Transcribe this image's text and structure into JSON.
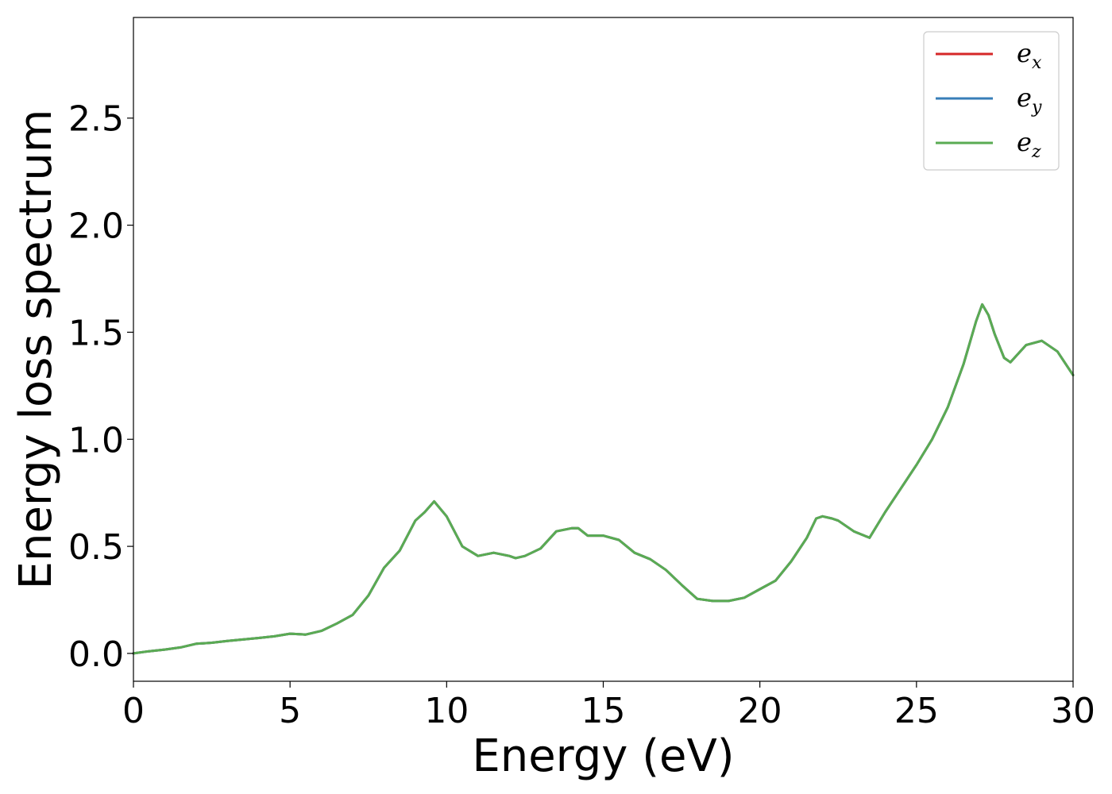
{
  "chart_data": {
    "type": "line",
    "title": "",
    "xlabel": "Energy (eV)",
    "ylabel": "Energy loss spectrum",
    "xlim": [
      0,
      30
    ],
    "ylim": [
      -0.13,
      2.97
    ],
    "xticks": [
      0,
      5,
      10,
      15,
      20,
      25,
      30
    ],
    "xtick_labels": [
      "0",
      "5",
      "10",
      "15",
      "20",
      "25",
      "30"
    ],
    "yticks": [
      0.0,
      0.5,
      1.0,
      1.5,
      2.0,
      2.5
    ],
    "ytick_labels": [
      "0.0",
      "0.5",
      "1.0",
      "1.5",
      "2.0",
      "2.5"
    ],
    "grid": false,
    "legend_position": "top-right",
    "x": [
      0,
      0.5,
      1,
      1.5,
      2,
      2.5,
      3,
      3.5,
      4,
      4.5,
      5,
      5.5,
      6,
      6.5,
      7,
      7.5,
      8,
      8.5,
      9,
      9.3,
      9.6,
      10,
      10.5,
      11,
      11.5,
      12,
      12.2,
      12.5,
      13,
      13.5,
      14,
      14.2,
      14.5,
      15,
      15.5,
      16,
      16.5,
      17,
      17.5,
      18,
      18.5,
      19,
      19.5,
      20,
      20.5,
      21,
      21.5,
      21.8,
      22,
      22.3,
      22.5,
      23,
      23.5,
      24,
      24.5,
      25,
      25.5,
      26,
      26.5,
      26.9,
      27.1,
      27.3,
      27.5,
      27.8,
      28,
      28.5,
      29,
      29.5,
      30
    ],
    "series": [
      {
        "name": "e_x",
        "legend_base": "e",
        "legend_sub": "x",
        "color": "#d62728",
        "values": [
          0.0,
          0.01,
          0.018,
          0.028,
          0.045,
          0.05,
          0.058,
          0.065,
          0.072,
          0.08,
          0.092,
          0.088,
          0.105,
          0.14,
          0.18,
          0.27,
          0.4,
          0.48,
          0.62,
          0.66,
          0.71,
          0.64,
          0.5,
          0.455,
          0.47,
          0.455,
          0.445,
          0.455,
          0.49,
          0.57,
          0.585,
          0.585,
          0.55,
          0.55,
          0.53,
          0.47,
          0.44,
          0.39,
          0.32,
          0.255,
          0.245,
          0.245,
          0.26,
          0.3,
          0.34,
          0.43,
          0.54,
          0.63,
          0.64,
          0.63,
          0.62,
          0.57,
          0.54,
          0.66,
          0.77,
          0.88,
          1.0,
          1.15,
          1.35,
          1.55,
          1.63,
          1.58,
          1.49,
          1.38,
          1.36,
          1.44,
          1.46,
          1.41,
          1.3
        ]
      },
      {
        "name": "e_y",
        "legend_base": "e",
        "legend_sub": "y",
        "color": "#377eb8",
        "values": [
          0.0,
          0.01,
          0.018,
          0.028,
          0.045,
          0.05,
          0.058,
          0.065,
          0.072,
          0.08,
          0.092,
          0.088,
          0.105,
          0.14,
          0.18,
          0.27,
          0.4,
          0.48,
          0.62,
          0.66,
          0.71,
          0.64,
          0.5,
          0.455,
          0.47,
          0.455,
          0.445,
          0.455,
          0.49,
          0.57,
          0.585,
          0.585,
          0.55,
          0.55,
          0.53,
          0.47,
          0.44,
          0.39,
          0.32,
          0.255,
          0.245,
          0.245,
          0.26,
          0.3,
          0.34,
          0.43,
          0.54,
          0.63,
          0.64,
          0.63,
          0.62,
          0.57,
          0.54,
          0.66,
          0.77,
          0.88,
          1.0,
          1.15,
          1.35,
          1.55,
          1.63,
          1.58,
          1.49,
          1.38,
          1.36,
          1.44,
          1.46,
          1.41,
          1.3
        ]
      },
      {
        "name": "e_z",
        "legend_base": "e",
        "legend_sub": "z",
        "color": "#5aab53",
        "values": [
          0.0,
          0.01,
          0.018,
          0.028,
          0.045,
          0.05,
          0.058,
          0.065,
          0.072,
          0.08,
          0.092,
          0.088,
          0.105,
          0.14,
          0.18,
          0.27,
          0.4,
          0.48,
          0.62,
          0.66,
          0.71,
          0.64,
          0.5,
          0.455,
          0.47,
          0.455,
          0.445,
          0.455,
          0.49,
          0.57,
          0.585,
          0.585,
          0.55,
          0.55,
          0.53,
          0.47,
          0.44,
          0.39,
          0.32,
          0.255,
          0.245,
          0.245,
          0.26,
          0.3,
          0.34,
          0.43,
          0.54,
          0.63,
          0.64,
          0.63,
          0.62,
          0.57,
          0.54,
          0.66,
          0.77,
          0.88,
          1.0,
          1.15,
          1.35,
          1.55,
          1.63,
          1.58,
          1.49,
          1.38,
          1.36,
          1.44,
          1.46,
          1.41,
          1.3
        ]
      }
    ]
  }
}
